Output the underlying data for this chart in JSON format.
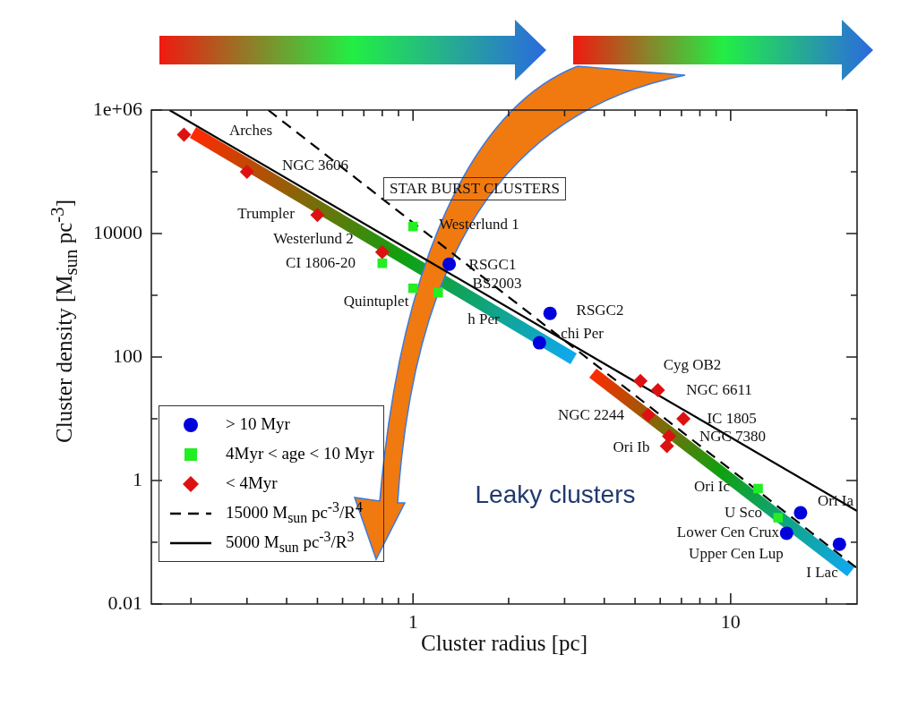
{
  "chart_data": {
    "type": "scatter",
    "xlabel": "Cluster radius [pc]",
    "ylabel": "Cluster density [M$_{sun}$ pc$^{-3}$]",
    "log": "xy",
    "legend": "bottom left",
    "xlim": [
      0.15,
      25
    ],
    "xticks": [
      {
        "value": 0.2,
        "label": null
      },
      {
        "value": 0.3,
        "label": null
      },
      {
        "value": 0.4,
        "label": null
      },
      {
        "value": 0.5,
        "label": null
      },
      {
        "value": 0.6,
        "label": null
      },
      {
        "value": 0.7,
        "label": null
      },
      {
        "value": 0.8,
        "label": null
      },
      {
        "value": 0.9,
        "label": null
      },
      1,
      {
        "value": 2,
        "label": null
      },
      {
        "value": 3,
        "label": null
      },
      {
        "value": 4,
        "label": null
      },
      {
        "value": 5,
        "label": null
      },
      {
        "value": 6,
        "label": null
      },
      {
        "value": 7,
        "label": null
      },
      {
        "value": 8,
        "label": null
      },
      {
        "value": 9,
        "label": null
      },
      10,
      {
        "value": 20,
        "label": null
      }
    ],
    "ylim": [
      0.01,
      1000000
    ],
    "yticks": [
      0.01,
      {
        "value": 0.1,
        "label": null
      },
      1,
      {
        "value": 10,
        "label": null
      },
      100,
      {
        "value": 1000,
        "label": null
      },
      10000,
      {
        "value": 100000,
        "label": null
      },
      {
        "value": 1000000,
        "label": "1e+06"
      }
    ],
    "series": [
      {
        "name": "> 10 Myr",
        "type": "scatter",
        "marker": "circle",
        "color": "#0000dd",
        "x": [
          1.3,
          2.7,
          2.5,
          16.6,
          15,
          22
        ],
        "values": [
          3200,
          510,
          170,
          0.3,
          0.14,
          0.093
        ]
      },
      {
        "name": "4Myr < age < 10 Myr",
        "type": "scatter",
        "marker": "square",
        "color": "#22ee22",
        "x": [
          1,
          0.8,
          1,
          1.2,
          12.2,
          14.1
        ],
        "values": [
          13000,
          3300,
          1300,
          1100,
          0.74,
          0.25
        ]
      },
      {
        "name": "< 4Myr",
        "type": "scatter",
        "marker": "diamond",
        "color": "#dd1111",
        "x": [
          0.19,
          0.3,
          0.5,
          0.8,
          5.2,
          5.9,
          5.5,
          7.1,
          6.4,
          6.3
        ],
        "values": [
          400000,
          100000,
          20000,
          5000,
          41,
          29,
          11.5,
          10,
          5.2,
          3.6
        ]
      },
      {
        "name": "15000 M$_{sun}$ pc$^{-3}$/R$^{4}$",
        "type": "line",
        "marker": "none",
        "line_style": "dashed",
        "color": "#000000",
        "x": [
          0.35,
          1,
          3,
          10,
          25
        ],
        "values": [
          1000000,
          15000,
          185,
          1.5,
          0.038
        ]
      },
      {
        "name": "5000 M$_{sun}$ pc$^{-3}$/R$^{3}$",
        "type": "line",
        "marker": "none",
        "line_style": "solid",
        "color": "#000000",
        "x": [
          0.171,
          1,
          5,
          10,
          25
        ],
        "values": [
          1000000,
          5000,
          40,
          5,
          0.32
        ]
      }
    ],
    "annotations": [
      "STAR BURST CLUSTERS",
      "Leaky clusters",
      "Arches",
      "NGC 3606",
      "Trumpler",
      "Westerlund 2",
      "CI 1806-20",
      "Quintuplet",
      "Westerlund 1",
      "RSGC1",
      "BS2003",
      "RSGC2",
      "h Per",
      "chi Per",
      "Cyg OB2",
      "NGC 6611",
      "NGC 2244",
      "IC 1805",
      "NGC 7380",
      "Ori Ib",
      "Ori Ic",
      "U Sco",
      "Ori Ia",
      "Lower Cen Crux",
      "Upper Cen Lup",
      "I Lac"
    ]
  }
}
